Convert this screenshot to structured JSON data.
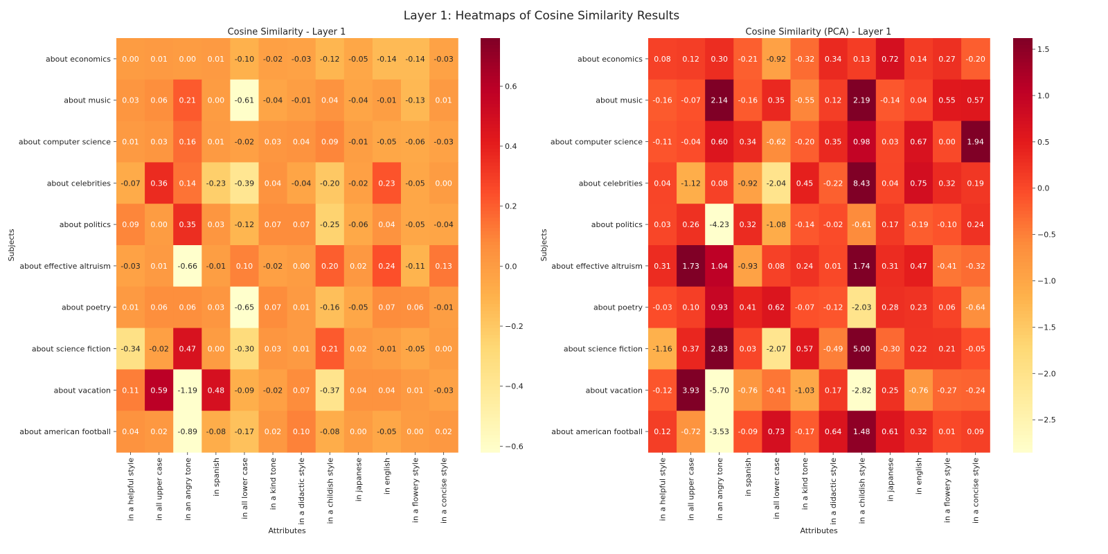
{
  "figure_title": "Layer 1: Heatmaps of Cosine Similarity Results",
  "chart_data": [
    {
      "type": "heatmap",
      "title": "Cosine Similarity - Layer 1",
      "xlabel": "Attributes",
      "ylabel": "Subjects",
      "colormap": "YlOrRd",
      "vrange": [
        -0.62,
        0.76
      ],
      "colorbar_ticks": [
        -0.6,
        -0.4,
        -0.2,
        0.0,
        0.2,
        0.4,
        0.6
      ],
      "colorbar_tick_labels": [
        "−0.6",
        "−0.4",
        "−0.2",
        "0.0",
        "0.2",
        "0.4",
        "0.6"
      ],
      "x": [
        "in a helpful style",
        "in all upper case",
        "in an angry tone",
        "in spanish",
        "in all lower case",
        "in a kind tone",
        "in a didactic style",
        "in a childish style",
        "in japanese",
        "in english",
        "in a flowery style",
        "in a concise style"
      ],
      "y": [
        "about economics",
        "about music",
        "about computer science",
        "about celebrities",
        "about politics",
        "about effective altruism",
        "about poetry",
        "about science fiction",
        "about vacation",
        "about american football"
      ],
      "values": [
        [
          0.0,
          0.01,
          0.0,
          0.01,
          -0.1,
          -0.02,
          -0.03,
          -0.12,
          -0.05,
          -0.14,
          -0.14,
          -0.03
        ],
        [
          0.03,
          0.06,
          0.21,
          -0.0,
          -0.61,
          -0.04,
          -0.01,
          0.04,
          -0.04,
          -0.01,
          -0.13,
          0.01
        ],
        [
          0.01,
          0.03,
          0.16,
          0.01,
          -0.02,
          0.03,
          0.04,
          0.09,
          -0.01,
          -0.05,
          -0.06,
          -0.03
        ],
        [
          -0.07,
          0.36,
          0.14,
          -0.23,
          -0.39,
          0.04,
          -0.04,
          -0.2,
          -0.02,
          0.23,
          -0.05,
          0.0
        ],
        [
          0.09,
          -0.0,
          0.35,
          0.03,
          -0.12,
          0.07,
          0.07,
          -0.25,
          -0.06,
          0.04,
          -0.05,
          -0.04
        ],
        [
          -0.03,
          0.01,
          -0.66,
          -0.01,
          0.1,
          -0.02,
          -0.0,
          0.2,
          0.02,
          0.24,
          -0.11,
          0.13
        ],
        [
          0.01,
          0.06,
          0.06,
          0.03,
          -0.65,
          0.07,
          0.01,
          -0.16,
          -0.05,
          0.07,
          0.06,
          -0.01
        ],
        [
          -0.34,
          -0.02,
          0.47,
          -0.0,
          -0.3,
          0.03,
          0.01,
          0.21,
          0.02,
          -0.01,
          -0.05,
          0.0
        ],
        [
          0.11,
          0.59,
          -1.19,
          0.48,
          -0.09,
          -0.02,
          0.07,
          -0.37,
          0.04,
          0.04,
          0.01,
          -0.03
        ],
        [
          0.04,
          0.02,
          -0.89,
          -0.08,
          -0.17,
          0.02,
          0.1,
          -0.08,
          -0.0,
          -0.05,
          -0.0,
          0.02
        ]
      ]
    },
    {
      "type": "heatmap",
      "title": "Cosine Similarity (PCA) - Layer 1",
      "xlabel": "Attributes",
      "ylabel": "Subjects",
      "colormap": "YlOrRd",
      "vrange": [
        -2.85,
        1.62
      ],
      "colorbar_ticks": [
        -2.5,
        -2.0,
        -1.5,
        -1.0,
        -0.5,
        0.0,
        0.5,
        1.0,
        1.5
      ],
      "colorbar_tick_labels": [
        "−2.5",
        "−2.0",
        "−1.5",
        "−1.0",
        "−0.5",
        "0.0",
        "0.5",
        "1.0",
        "1.5"
      ],
      "x": [
        "in a helpful style",
        "in all upper case",
        "in an angry tone",
        "in spanish",
        "in all lower case",
        "in a kind tone",
        "in a didactic style",
        "in a childish style",
        "in japanese",
        "in english",
        "in a flowery style",
        "in a concise style"
      ],
      "y": [
        "about economics",
        "about music",
        "about computer science",
        "about celebrities",
        "about politics",
        "about effective altruism",
        "about poetry",
        "about science fiction",
        "about vacation",
        "about american football"
      ],
      "values": [
        [
          0.08,
          0.12,
          0.3,
          -0.21,
          -0.92,
          -0.32,
          0.34,
          0.13,
          0.72,
          0.14,
          0.27,
          -0.2
        ],
        [
          -0.16,
          -0.07,
          2.14,
          -0.16,
          0.35,
          -0.55,
          0.12,
          2.19,
          -0.14,
          0.04,
          0.55,
          0.57
        ],
        [
          -0.11,
          -0.04,
          0.6,
          0.34,
          -0.62,
          -0.2,
          0.35,
          0.98,
          0.03,
          0.67,
          -0.0,
          1.94
        ],
        [
          0.04,
          -1.12,
          0.08,
          -0.92,
          -2.04,
          0.45,
          -0.22,
          8.43,
          0.04,
          0.75,
          0.32,
          0.19
        ],
        [
          0.03,
          0.26,
          -4.23,
          0.32,
          -1.08,
          -0.14,
          -0.02,
          -0.61,
          0.17,
          -0.19,
          -0.1,
          0.24
        ],
        [
          0.31,
          1.73,
          1.04,
          -0.93,
          0.08,
          0.24,
          0.01,
          1.74,
          0.31,
          0.47,
          -0.41,
          -0.32
        ],
        [
          -0.03,
          0.1,
          0.93,
          0.41,
          0.62,
          -0.07,
          -0.12,
          -2.03,
          0.28,
          0.23,
          0.06,
          -0.64
        ],
        [
          -1.16,
          0.37,
          2.83,
          0.03,
          -2.07,
          0.57,
          -0.49,
          5.0,
          -0.3,
          0.22,
          0.21,
          -0.05
        ],
        [
          -0.12,
          3.93,
          -5.7,
          -0.76,
          -0.41,
          -1.03,
          0.17,
          -2.82,
          0.25,
          -0.76,
          -0.27,
          -0.24
        ],
        [
          0.12,
          -0.72,
          -3.53,
          -0.09,
          0.73,
          -0.17,
          0.64,
          1.48,
          0.61,
          0.32,
          0.01,
          0.09
        ]
      ]
    }
  ]
}
